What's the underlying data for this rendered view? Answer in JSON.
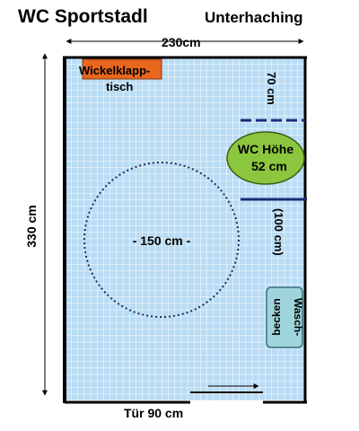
{
  "title": {
    "main": "WC Sportstadl",
    "location": "Unterhaching"
  },
  "dimensions": {
    "width": "230cm",
    "depth": "330 cm",
    "door": "Tür 90 cm",
    "turning_circle": "- 150 cm -",
    "table_height": "70 cm",
    "rail_height": "(100 cm)"
  },
  "fixtures": {
    "changing_table": {
      "line1": "Wickelklapp-",
      "line2": "tisch",
      "color": "#e8661e"
    },
    "toilet": {
      "line1": "WC Höhe",
      "line2": "52 cm",
      "color": "#8cc63f"
    },
    "washbasin": {
      "line1": "Wasch-",
      "line2": "becken",
      "color": "#9fd4dc"
    }
  },
  "colors": {
    "floor_tile": "#b9dcf4",
    "tile_grid": "#ffffff",
    "wall": "#000000",
    "rail_dashed": "#1a2b7a",
    "rail_solid": "#1a2b7a"
  }
}
